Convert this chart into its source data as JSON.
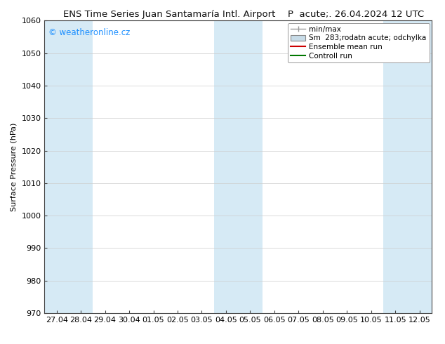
{
  "title_left": "ENS Time Series Juan Santamaría Intl. Airport",
  "title_right": "P  acute;. 26.04.2024 12 UTC",
  "ylabel": "Surface Pressure (hPa)",
  "ylim": [
    970,
    1060
  ],
  "yticks": [
    970,
    980,
    990,
    1000,
    1010,
    1020,
    1030,
    1040,
    1050,
    1060
  ],
  "x_labels": [
    "27.04",
    "28.04",
    "29.04",
    "30.04",
    "01.05",
    "02.05",
    "03.05",
    "04.05",
    "05.05",
    "06.05",
    "07.05",
    "08.05",
    "09.05",
    "10.05",
    "11.05",
    "12.05"
  ],
  "band_color": "#d6eaf5",
  "bg_color": "#ffffff",
  "plot_bg_color": "#ffffff",
  "grid_color": "#cccccc",
  "ensemble_mean_color": "#cc0000",
  "control_run_color": "#007700",
  "minmax_color": "#999999",
  "spread_color": "#c8dce8",
  "watermark": "© weatheronline.cz",
  "watermark_color": "#1e90ff",
  "title_fontsize": 9.5,
  "axis_fontsize": 8,
  "tick_fontsize": 8,
  "band_positions": [
    0,
    1,
    7,
    8,
    14,
    15
  ]
}
